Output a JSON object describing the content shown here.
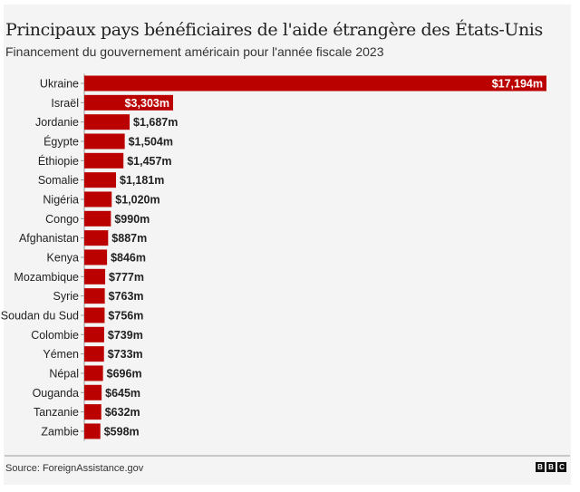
{
  "chart_data": {
    "type": "bar",
    "orientation": "horizontal",
    "title": "Principaux pays bénéficiaires de l'aide étrangère des États-Unis",
    "subtitle": "Financement du gouvernement américain pour l'année fiscale 2023",
    "categories": [
      "Ukraine",
      "Israël",
      "Jordanie",
      "Égypte",
      "Éthiopie",
      "Somalie",
      "Nigéria",
      "Congo",
      "Afghanistan",
      "Kenya",
      "Mozambique",
      "Syrie",
      "Soudan du Sud",
      "Colombie",
      "Yémen",
      "Népal",
      "Ouganda",
      "Tanzanie",
      "Zambie"
    ],
    "values": [
      17194,
      3303,
      1687,
      1504,
      1457,
      1181,
      1020,
      990,
      887,
      846,
      777,
      763,
      756,
      739,
      733,
      696,
      645,
      632,
      598
    ],
    "labels": [
      "$17,194m",
      "$3,303m",
      "$1,687m",
      "$1,504m",
      "$1,457m",
      "$1,181m",
      "$1,020m",
      "$990m",
      "$887m",
      "$846m",
      "$777m",
      "$763m",
      "$756m",
      "$739m",
      "$733m",
      "$696m",
      "$645m",
      "$632m",
      "$598m"
    ],
    "unit": "millions USD",
    "xlim": [
      0,
      17194
    ],
    "grid": false,
    "bar_color": "#bb0000"
  },
  "footer": {
    "source": "Source: ForeignAssistance.gov",
    "logo": [
      "B",
      "B",
      "C"
    ]
  }
}
